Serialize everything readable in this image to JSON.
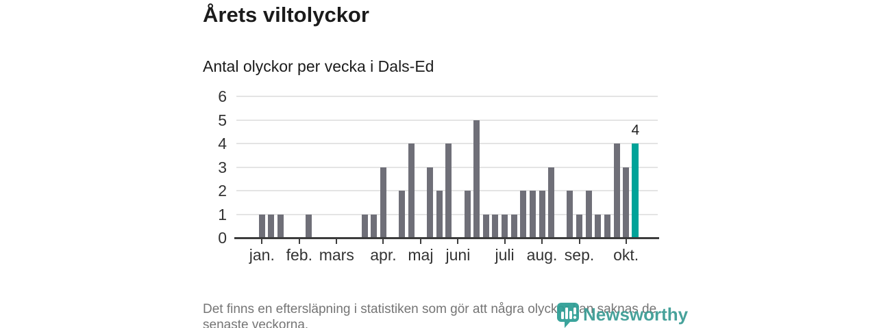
{
  "header": {
    "title": "Årets viltolyckor",
    "subtitle": "Antal olyckor per vecka i Dals-Ed"
  },
  "footer": {
    "note_line1": "Det finns en eftersläpning i statistiken som gör att några olyckor kan saknas de",
    "note_line2": "senaste veckorna.",
    "logo_text": "Newsworthy"
  },
  "colors": {
    "bar": "#6f6f78",
    "highlight": "#00a399",
    "grid": "#e4e4e4",
    "axis": "#3c3c3c",
    "tick_label": "#333333",
    "logo": "#3a9c94"
  },
  "chart_data": {
    "type": "bar",
    "title": "Årets viltolyckor",
    "subtitle": "Antal olyckor per vecka i Dals-Ed",
    "ylabel": "Antal olyckor",
    "xlabel": "vecka",
    "ylim": [
      0,
      6
    ],
    "yticks": [
      0,
      1,
      2,
      3,
      4,
      5,
      6
    ],
    "grid": true,
    "legend": "none",
    "categories_note": "weekly values, week 1 through week 41",
    "values": [
      1,
      1,
      1,
      0,
      0,
      1,
      0,
      0,
      0,
      0,
      0,
      1,
      1,
      3,
      0,
      2,
      4,
      0,
      3,
      2,
      4,
      0,
      2,
      5,
      1,
      1,
      1,
      1,
      2,
      2,
      2,
      3,
      0,
      2,
      1,
      2,
      1,
      1,
      4,
      3,
      4
    ],
    "highlight_index": 40,
    "highlight_value_label": "4",
    "month_ticks": [
      {
        "label": "jan.",
        "week_index": 0
      },
      {
        "label": "feb.",
        "week_index": 4
      },
      {
        "label": "mars",
        "week_index": 8
      },
      {
        "label": "apr.",
        "week_index": 13
      },
      {
        "label": "maj",
        "week_index": 17
      },
      {
        "label": "juni",
        "week_index": 21
      },
      {
        "label": "juli",
        "week_index": 26
      },
      {
        "label": "aug.",
        "week_index": 30
      },
      {
        "label": "sep.",
        "week_index": 34
      },
      {
        "label": "okt.",
        "week_index": 39
      }
    ]
  }
}
